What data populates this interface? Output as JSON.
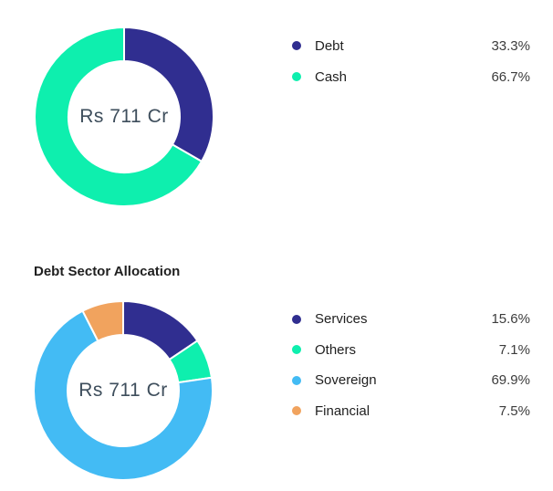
{
  "panel": {
    "currency_unit": "Rs",
    "total_display": "Rs 711 Cr"
  },
  "chart_data": [
    {
      "type": "pie",
      "subtype": "donut",
      "title": "",
      "center_label": "Rs 711 Cr",
      "labels": [
        "Debt",
        "Cash"
      ],
      "values": [
        33.3,
        66.7
      ],
      "value_labels": [
        "33.3%",
        "66.7%"
      ],
      "colors": [
        "#302E90",
        "#0EEFAE"
      ],
      "start_angle_deg": 0,
      "direction": "clockwise",
      "legend_position": "right",
      "segment_border_color": "#ffffff"
    },
    {
      "type": "pie",
      "subtype": "donut",
      "title": "Debt Sector Allocation",
      "center_label": "Rs 711 Cr",
      "labels": [
        "Services",
        "Others",
        "Sovereign",
        "Financial"
      ],
      "values": [
        15.6,
        7.1,
        69.9,
        7.5
      ],
      "value_labels": [
        "15.6%",
        "7.1%",
        "69.9%",
        "7.5%"
      ],
      "colors": [
        "#302E90",
        "#0EEFAE",
        "#43BBF4",
        "#F1A35E"
      ],
      "start_angle_deg": 0,
      "direction": "clockwise",
      "legend_position": "right",
      "segment_border_color": "#ffffff"
    }
  ]
}
